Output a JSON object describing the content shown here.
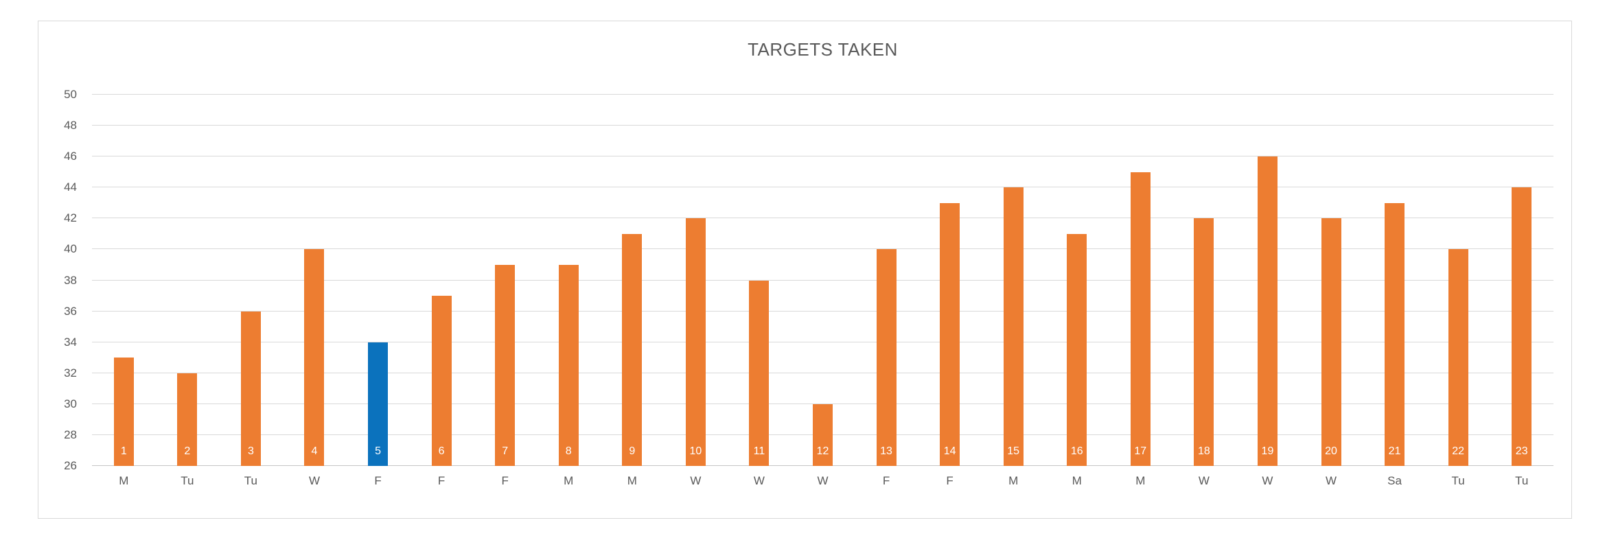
{
  "chart_data": {
    "type": "bar",
    "title": "TARGETS TAKEN",
    "xlabel": "",
    "ylabel": "",
    "categories": [
      "M",
      "Tu",
      "Tu",
      "W",
      "F",
      "F",
      "F",
      "M",
      "M",
      "W",
      "W",
      "W",
      "F",
      "F",
      "M",
      "M",
      "M",
      "W",
      "W",
      "W",
      "Sa",
      "Tu",
      "Tu"
    ],
    "bar_numbers": [
      "1",
      "2",
      "3",
      "4",
      "5",
      "6",
      "7",
      "8",
      "9",
      "10",
      "11",
      "12",
      "13",
      "14",
      "15",
      "16",
      "17",
      "18",
      "19",
      "20",
      "21",
      "22",
      "23"
    ],
    "values": [
      33,
      32,
      36,
      40,
      34,
      37,
      39,
      39,
      41,
      42,
      38,
      30,
      40,
      43,
      44,
      41,
      45,
      42,
      46,
      42,
      43,
      40,
      44
    ],
    "ylim": [
      26,
      50
    ],
    "yticks": [
      26,
      28,
      30,
      32,
      34,
      36,
      38,
      40,
      42,
      44,
      46,
      48,
      50
    ],
    "grid": true,
    "legend_position": "none",
    "highlight_index": 4,
    "colors": {
      "bar": "#ED7D31",
      "highlight": "#0B72BD",
      "grid": "#D9D9D9",
      "axis_text": "#595959",
      "title_text": "#595959",
      "bar_label_text": "#FFFFFF",
      "card_border": "#D9D9D9"
    }
  }
}
